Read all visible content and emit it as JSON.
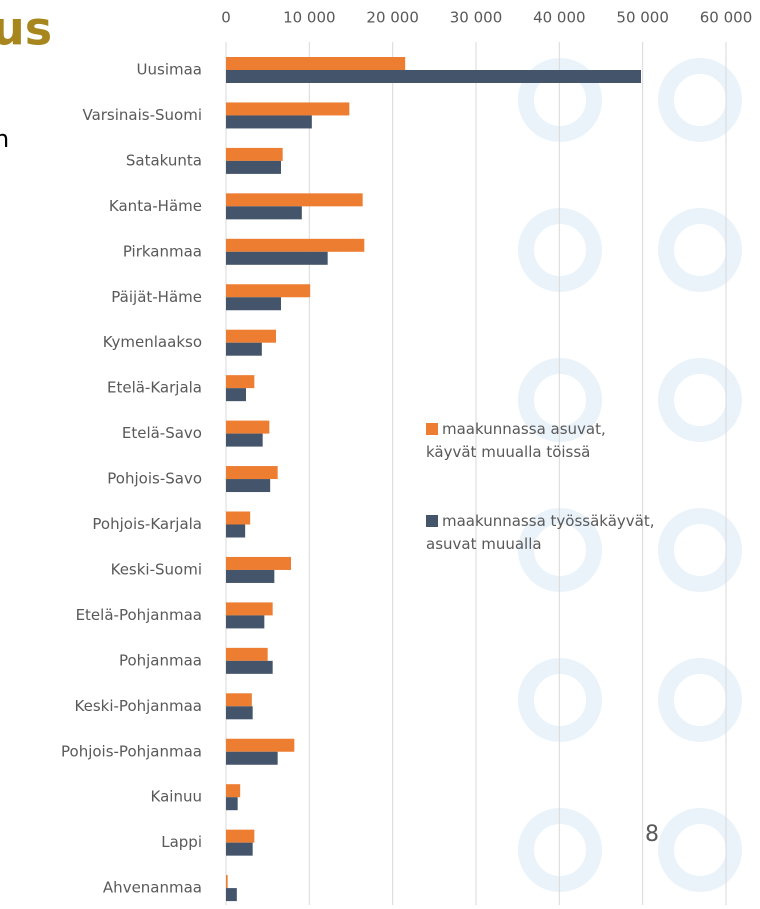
{
  "chart_data": {
    "type": "bar",
    "orientation": "horizontal",
    "title_fragment": "us",
    "text_fragment": "n",
    "slide_number": "8",
    "categories": [
      "Uusimaa",
      "Varsinais-Suomi",
      "Satakunta",
      "Kanta-Häme",
      "Pirkanmaa",
      "Päijät-Häme",
      "Kymenlaakso",
      "Etelä-Karjala",
      "Etelä-Savo",
      "Pohjois-Savo",
      "Pohjois-Karjala",
      "Keski-Suomi",
      "Etelä-Pohjanmaa",
      "Pohjanmaa",
      "Keski-Pohjanmaa",
      "Pohjois-Pohjanmaa",
      "Kainuu",
      "Lappi",
      "Ahvenanmaa"
    ],
    "series": [
      {
        "name": "maakunnassa asuvat, käyvät muualla töissä",
        "color": "#ed7d31",
        "values": [
          21500,
          14800,
          6800,
          16400,
          16600,
          10100,
          6000,
          3400,
          5200,
          6200,
          2900,
          7800,
          5600,
          5000,
          3100,
          8200,
          1700,
          3400,
          200
        ]
      },
      {
        "name": "maakunnassa työssäkäyvät, asuvat muualla",
        "color": "#44546a",
        "values": [
          49800,
          10300,
          6600,
          9100,
          12200,
          6600,
          4300,
          2400,
          4400,
          5300,
          2300,
          5800,
          4600,
          5600,
          3200,
          6200,
          1400,
          3200,
          1300
        ]
      }
    ],
    "xlim": [
      0,
      60000
    ],
    "xticks": [
      0,
      {
        "value": 10000,
        "label": "10 000"
      },
      {
        "value": 20000,
        "label": "20 000"
      },
      {
        "value": 30000,
        "label": "30 000"
      },
      {
        "value": 40000,
        "label": "40 000"
      },
      {
        "value": 50000,
        "label": "50 000"
      },
      {
        "value": 60000,
        "label": "60 000"
      }
    ],
    "grid": true
  }
}
